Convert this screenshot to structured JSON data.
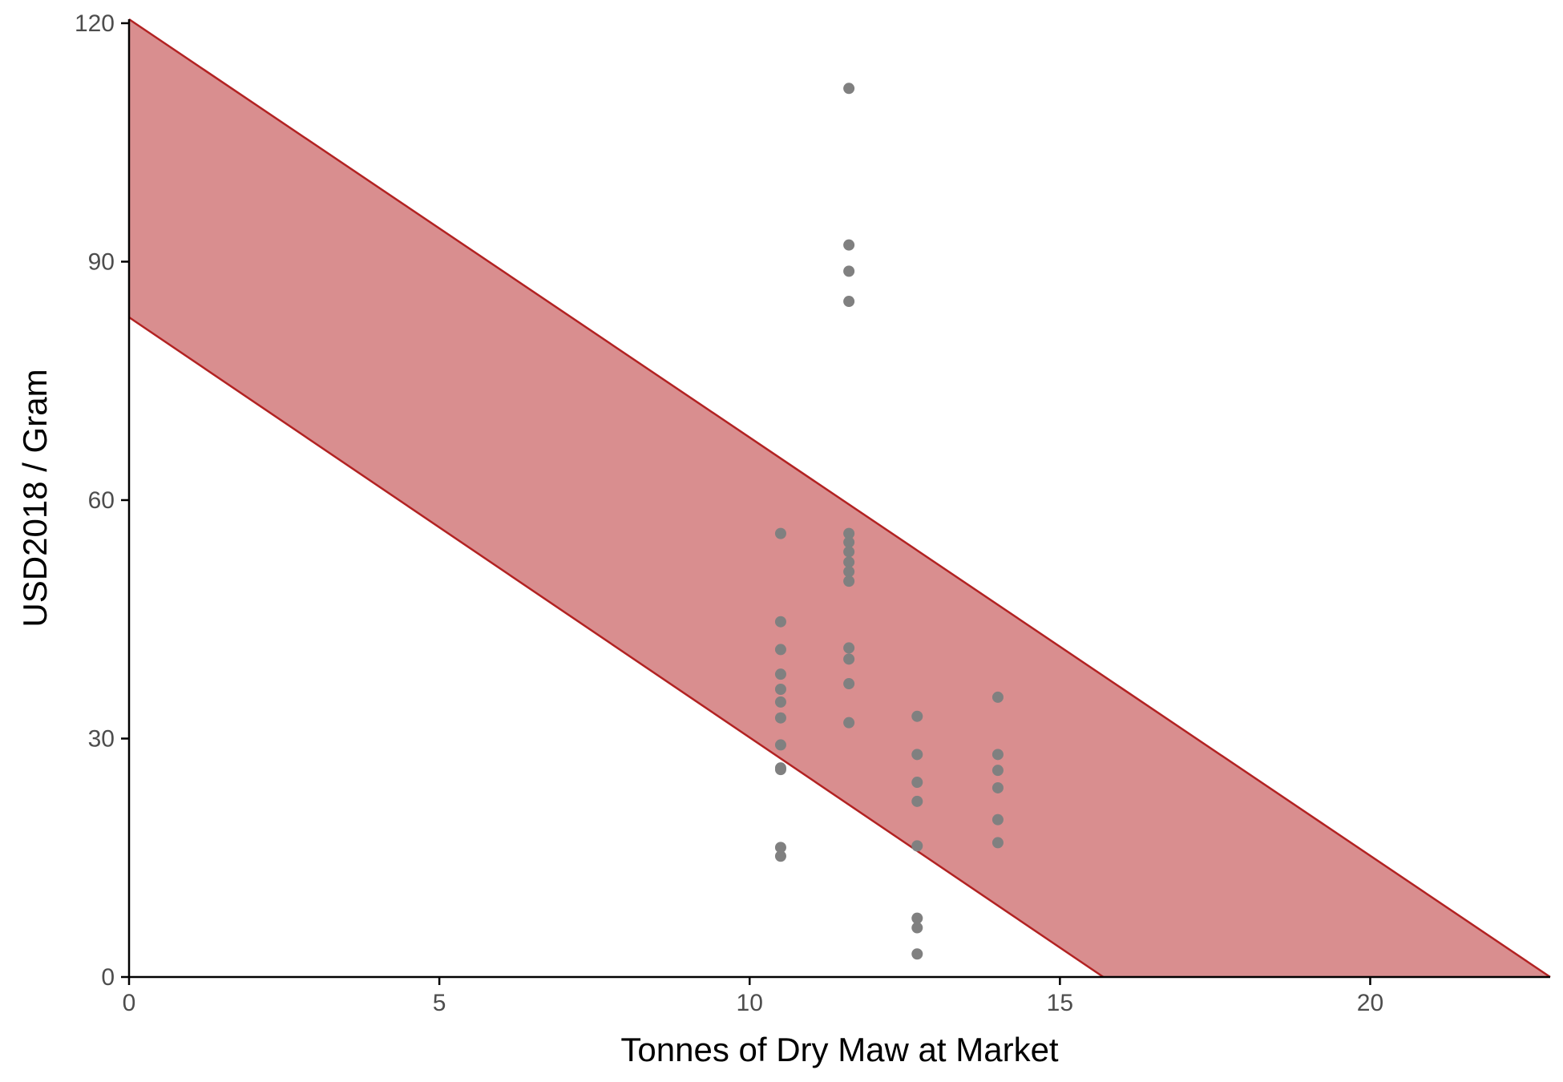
{
  "chart_data": {
    "type": "scatter",
    "title": "",
    "xlabel": "Tonnes of Dry Maw at Market",
    "ylabel": "USD2018 / Gram",
    "xlim": [
      0,
      22.9
    ],
    "ylim": [
      0,
      120.5
    ],
    "x_ticks": [
      0,
      5,
      10,
      15,
      20
    ],
    "y_ticks": [
      0,
      30,
      60,
      90,
      120
    ],
    "grid": false,
    "legend": "none",
    "colors": {
      "points": "#808080",
      "band_fill": "#d98e8f",
      "band_line": "#b22222",
      "axis": "#000000",
      "tick_text": "#4d4d4d"
    },
    "band": {
      "upper": {
        "x": [
          0,
          22.9
        ],
        "y": [
          120.5,
          0
        ]
      },
      "lower": {
        "x": [
          0,
          15.7
        ],
        "y": [
          83,
          0
        ]
      }
    },
    "points": [
      {
        "x": 10.5,
        "y": 55.8
      },
      {
        "x": 10.5,
        "y": 44.7
      },
      {
        "x": 10.5,
        "y": 41.2
      },
      {
        "x": 10.5,
        "y": 38.1
      },
      {
        "x": 10.5,
        "y": 36.2
      },
      {
        "x": 10.5,
        "y": 34.6
      },
      {
        "x": 10.5,
        "y": 32.6
      },
      {
        "x": 10.5,
        "y": 29.2
      },
      {
        "x": 10.5,
        "y": 26.3
      },
      {
        "x": 10.5,
        "y": 26.1
      },
      {
        "x": 10.5,
        "y": 16.3
      },
      {
        "x": 10.5,
        "y": 15.2
      },
      {
        "x": 11.6,
        "y": 111.8
      },
      {
        "x": 11.6,
        "y": 92.1
      },
      {
        "x": 11.6,
        "y": 88.8
      },
      {
        "x": 11.6,
        "y": 85.0
      },
      {
        "x": 11.6,
        "y": 55.8
      },
      {
        "x": 11.6,
        "y": 54.7
      },
      {
        "x": 11.6,
        "y": 53.5
      },
      {
        "x": 11.6,
        "y": 52.2
      },
      {
        "x": 11.6,
        "y": 51.0
      },
      {
        "x": 11.6,
        "y": 49.8
      },
      {
        "x": 11.6,
        "y": 41.4
      },
      {
        "x": 11.6,
        "y": 40.0
      },
      {
        "x": 11.6,
        "y": 36.9
      },
      {
        "x": 11.6,
        "y": 32.0
      },
      {
        "x": 12.7,
        "y": 32.8
      },
      {
        "x": 12.7,
        "y": 28.0
      },
      {
        "x": 12.7,
        "y": 24.5
      },
      {
        "x": 12.7,
        "y": 22.1
      },
      {
        "x": 12.7,
        "y": 16.5
      },
      {
        "x": 12.7,
        "y": 7.4
      },
      {
        "x": 12.7,
        "y": 6.2
      },
      {
        "x": 12.7,
        "y": 2.9
      },
      {
        "x": 14.0,
        "y": 35.2
      },
      {
        "x": 14.0,
        "y": 28.0
      },
      {
        "x": 14.0,
        "y": 26.0
      },
      {
        "x": 14.0,
        "y": 23.8
      },
      {
        "x": 14.0,
        "y": 19.8
      },
      {
        "x": 14.0,
        "y": 16.9
      }
    ]
  }
}
